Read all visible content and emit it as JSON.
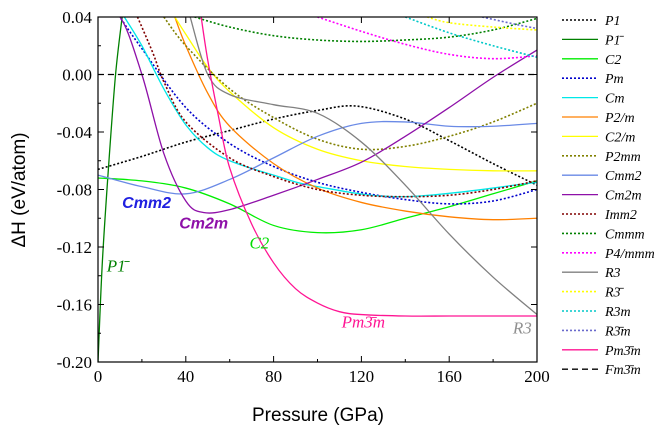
{
  "chart_data": {
    "type": "line",
    "xlabel": "Pressure (GPa)",
    "ylabel": "ΔH (eV/atom)",
    "xlim": [
      0,
      200
    ],
    "ylim": [
      -0.2,
      0.04
    ],
    "xticks": [
      "0",
      "40",
      "80",
      "120",
      "160",
      "200"
    ],
    "yticks": [
      "0.04",
      "0.00",
      "-0.04",
      "-0.08",
      "-0.12",
      "-0.16",
      "-0.20"
    ],
    "grid": false,
    "legend_position": "right",
    "series": [
      {
        "name": "P1",
        "color": "#000000",
        "dash": "dot",
        "x": [
          0,
          20,
          40,
          60,
          80,
          100,
          118,
          140,
          160,
          180,
          200
        ],
        "y": [
          -0.066,
          -0.057,
          -0.047,
          -0.039,
          -0.031,
          -0.025,
          -0.022,
          -0.031,
          -0.046,
          -0.062,
          -0.077
        ]
      },
      {
        "name": "P1̄",
        "color": "#008000",
        "dash": "solid",
        "x": [
          0,
          2,
          5,
          8,
          11
        ],
        "y": [
          -0.2,
          -0.13,
          -0.06,
          0.0,
          0.04
        ]
      },
      {
        "name": "C2",
        "color": "#00ee00",
        "dash": "solid",
        "x": [
          0,
          20,
          40,
          60,
          80,
          100,
          120,
          140,
          160,
          180,
          200
        ],
        "y": [
          -0.072,
          -0.074,
          -0.079,
          -0.09,
          -0.105,
          -0.11,
          -0.108,
          -0.1,
          -0.092,
          -0.083,
          -0.074
        ]
      },
      {
        "name": "Pm",
        "color": "#0000cc",
        "dash": "dot",
        "x": [
          0,
          10,
          20,
          40,
          60,
          80,
          100,
          120,
          140,
          160,
          180,
          200
        ],
        "y": [
          0.065,
          0.04,
          0.018,
          -0.023,
          -0.048,
          -0.064,
          -0.075,
          -0.082,
          -0.087,
          -0.09,
          -0.088,
          -0.08
        ]
      },
      {
        "name": "Cm",
        "color": "#00e8e8",
        "dash": "solid",
        "x": [
          12,
          20,
          30,
          40,
          50,
          60,
          80,
          100,
          140,
          200
        ],
        "y": [
          0.04,
          0.02,
          -0.01,
          -0.035,
          -0.051,
          -0.06,
          -0.07,
          -0.078,
          -0.085,
          -0.075
        ]
      },
      {
        "name": "P2/m",
        "color": "#ff8000",
        "dash": "solid",
        "x": [
          35,
          40,
          50,
          60,
          80,
          100,
          120,
          140,
          160,
          180,
          200
        ],
        "y": [
          0.04,
          0.02,
          -0.013,
          -0.036,
          -0.062,
          -0.079,
          -0.089,
          -0.095,
          -0.099,
          -0.101,
          -0.1
        ]
      },
      {
        "name": "C2/m",
        "color": "#ffff00",
        "dash": "solid",
        "x": [
          35,
          40,
          50,
          60,
          80,
          100,
          120,
          140,
          160,
          180,
          200
        ],
        "y": [
          0.04,
          0.028,
          0.005,
          -0.012,
          -0.037,
          -0.052,
          -0.06,
          -0.064,
          -0.066,
          -0.067,
          -0.067
        ]
      },
      {
        "name": "P2mm",
        "color": "#808000",
        "dash": "dot",
        "x": [
          30,
          40,
          60,
          80,
          100,
          120,
          140,
          160,
          180,
          200
        ],
        "y": [
          0.04,
          0.02,
          -0.01,
          -0.03,
          -0.045,
          -0.052,
          -0.05,
          -0.043,
          -0.033,
          -0.02
        ]
      },
      {
        "name": "Cmm2",
        "color": "#6a8ae6",
        "dash": "solid",
        "x": [
          0,
          20,
          40,
          60,
          80,
          100,
          120,
          140,
          160,
          180,
          200
        ],
        "y": [
          -0.07,
          -0.078,
          -0.083,
          -0.073,
          -0.058,
          -0.043,
          -0.034,
          -0.033,
          -0.036,
          -0.036,
          -0.034
        ]
      },
      {
        "name": "Cm2m",
        "color": "#8e10a8",
        "dash": "solid",
        "x": [
          0,
          10,
          20,
          30,
          40,
          48,
          60,
          80,
          100,
          120,
          140,
          160,
          180,
          200
        ],
        "y": [
          0.04,
          0.04,
          0.0,
          -0.055,
          -0.088,
          -0.096,
          -0.094,
          -0.084,
          -0.073,
          -0.061,
          -0.043,
          -0.023,
          -0.002,
          0.017
        ]
      },
      {
        "name": "Imm2",
        "color": "#800000",
        "dash": "dot",
        "x": [
          18,
          25,
          30,
          40,
          60,
          80,
          100,
          120,
          140,
          160,
          180,
          200
        ],
        "y": [
          0.04,
          0.015,
          -0.005,
          -0.033,
          -0.058,
          -0.071,
          -0.08,
          -0.084,
          -0.085,
          -0.084,
          -0.08,
          -0.074
        ]
      },
      {
        "name": "Cmmm",
        "color": "#008000",
        "dash": "dot",
        "x": [
          44,
          60,
          80,
          100,
          120,
          140,
          160,
          180,
          200
        ],
        "y": [
          0.04,
          0.033,
          0.027,
          0.024,
          0.023,
          0.024,
          0.026,
          0.031,
          0.039
        ]
      },
      {
        "name": "P4/mmm",
        "color": "#ff00ff",
        "dash": "dot",
        "x": [
          100,
          120,
          140,
          160,
          180,
          200
        ],
        "y": [
          0.04,
          0.03,
          0.021,
          0.014,
          0.011,
          0.013
        ]
      },
      {
        "name": "R3",
        "color": "#808080",
        "dash": "solid",
        "x": [
          42,
          50,
          60,
          80,
          100,
          120,
          140,
          160,
          180,
          200
        ],
        "y": [
          0.04,
          0.0,
          -0.014,
          -0.021,
          -0.027,
          -0.047,
          -0.077,
          -0.111,
          -0.141,
          -0.167
        ]
      },
      {
        "name": "R3̄",
        "color": "#ffff00",
        "dash": "dot",
        "x": [
          150,
          160,
          180,
          200
        ],
        "y": [
          0.04,
          0.036,
          0.033,
          0.031
        ]
      },
      {
        "name": "R3m",
        "color": "#00c8c8",
        "dash": "dot",
        "x": [
          140,
          160,
          180,
          200
        ],
        "y": [
          0.04,
          0.029,
          0.02,
          0.012
        ]
      },
      {
        "name": "R3̄m",
        "color": "#6a6acc",
        "dash": "dot",
        "x": [
          175,
          190,
          200
        ],
        "y": [
          0.04,
          0.035,
          0.032
        ]
      },
      {
        "name": "Pm3̄m",
        "color": "#ff1493",
        "dash": "solid",
        "x": [
          47,
          50,
          55,
          60,
          70,
          80,
          90,
          100,
          110,
          120,
          140,
          160,
          180,
          200
        ],
        "y": [
          0.04,
          0.01,
          -0.03,
          -0.065,
          -0.104,
          -0.131,
          -0.149,
          -0.159,
          -0.165,
          -0.167,
          -0.168,
          -0.168,
          -0.168,
          -0.168
        ]
      },
      {
        "name": "Fm3̄m",
        "color": "#000000",
        "dash": "dash",
        "x": [
          0,
          200
        ],
        "y": [
          0.0,
          0.0
        ]
      }
    ],
    "annotations": [
      {
        "text": "Cmm2",
        "color": "#2020e0",
        "x": 11,
        "y": -0.093,
        "style": "sans"
      },
      {
        "text": "Cm2m",
        "color": "#8e10a8",
        "x": 37,
        "y": -0.107,
        "style": "sans"
      },
      {
        "text": "C2",
        "color": "#00dd00",
        "x": 69,
        "y": -0.121,
        "style": "serif"
      },
      {
        "text": "P1̄",
        "color": "#008000",
        "x": 4,
        "y": -0.137,
        "style": "serif"
      },
      {
        "text": "Pm3̄m",
        "color": "#ff1493",
        "x": 111,
        "y": -0.176,
        "style": "serif"
      },
      {
        "text": "R3",
        "color": "#909090",
        "x": 189,
        "y": -0.18,
        "style": "serif"
      }
    ]
  }
}
